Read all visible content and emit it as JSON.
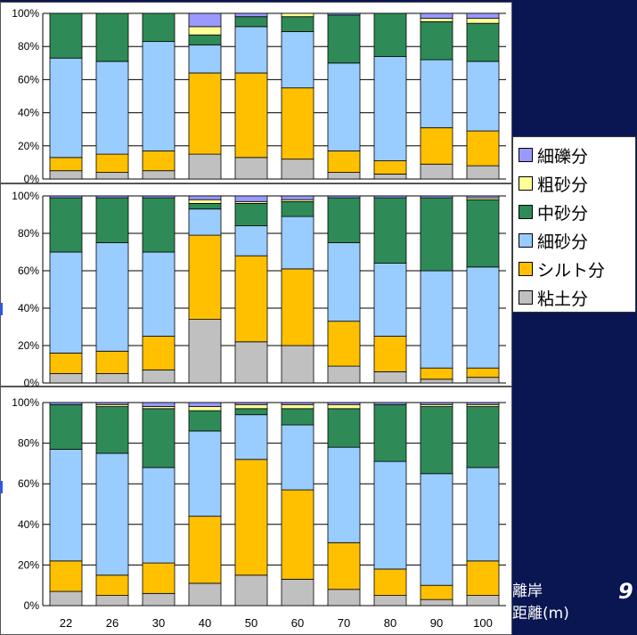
{
  "chart_data": {
    "type": "bar",
    "stacked": true,
    "categories": [
      "22",
      "26",
      "30",
      "40",
      "50",
      "60",
      "70",
      "80",
      "90",
      "100"
    ],
    "y_ticks": [
      "0%",
      "20%",
      "40%",
      "60%",
      "80%",
      "100%"
    ],
    "ylim": [
      0,
      100
    ],
    "legend_position": "right",
    "legend_order": [
      "細礫分",
      "粗砂分",
      "中砂分",
      "細砂分",
      "シルト分",
      "粘土分"
    ],
    "series_colors": {
      "粘土分": "#c0c0c0",
      "シルト分": "#ffc000",
      "細砂分": "#99ccff",
      "中砂分": "#2e8b57",
      "粗砂分": "#ffff99",
      "細礫分": "#9999ff"
    },
    "panels": [
      {
        "series": [
          {
            "name": "粘土分",
            "values": [
              5,
              4,
              5,
              15,
              13,
              12,
              4,
              3,
              9,
              8
            ]
          },
          {
            "name": "シルト分",
            "values": [
              8,
              11,
              12,
              49,
              51,
              43,
              13,
              8,
              22,
              21
            ]
          },
          {
            "name": "細砂分",
            "values": [
              60,
              56,
              66,
              17,
              28,
              34,
              53,
              63,
              41,
              42
            ]
          },
          {
            "name": "中砂分",
            "values": [
              27,
              29,
              17,
              6,
              6,
              9,
              29,
              26,
              23,
              23
            ]
          },
          {
            "name": "粗砂分",
            "values": [
              0,
              0,
              0,
              5,
              0,
              2,
              0,
              0,
              2,
              3
            ]
          },
          {
            "name": "細礫分",
            "values": [
              0,
              0,
              0,
              8,
              2,
              0,
              1,
              0,
              3,
              3
            ]
          }
        ]
      },
      {
        "series": [
          {
            "name": "粘土分",
            "values": [
              5,
              5,
              7,
              34,
              22,
              20,
              9,
              6,
              2,
              3
            ]
          },
          {
            "name": "シルト分",
            "values": [
              11,
              12,
              18,
              45,
              46,
              41,
              24,
              19,
              6,
              5
            ]
          },
          {
            "name": "細砂分",
            "values": [
              54,
              58,
              45,
              14,
              16,
              28,
              42,
              39,
              52,
              54
            ]
          },
          {
            "name": "中砂分",
            "values": [
              29,
              24,
              29,
              3,
              12,
              8,
              24,
              35,
              39,
              36
            ]
          },
          {
            "name": "粗砂分",
            "values": [
              0,
              0,
              0,
              2,
              1,
              1,
              0,
              0,
              0,
              1
            ]
          },
          {
            "name": "細礫分",
            "values": [
              1,
              1,
              1,
              2,
              3,
              2,
              1,
              1,
              1,
              1
            ]
          }
        ]
      },
      {
        "series": [
          {
            "name": "粘土分",
            "values": [
              7,
              5,
              6,
              11,
              15,
              13,
              8,
              5,
              3,
              5
            ]
          },
          {
            "name": "シルト分",
            "values": [
              15,
              10,
              15,
              33,
              57,
              44,
              23,
              13,
              7,
              17
            ]
          },
          {
            "name": "細砂分",
            "values": [
              55,
              60,
              47,
              42,
              22,
              32,
              47,
              53,
              55,
              46
            ]
          },
          {
            "name": "中砂分",
            "values": [
              22,
              23,
              29,
              10,
              3,
              8,
              19,
              28,
              33,
              30
            ]
          },
          {
            "name": "粗砂分",
            "values": [
              0,
              1,
              1,
              2,
              2,
              2,
              2,
              0,
              1,
              1
            ]
          },
          {
            "name": "細礫分",
            "values": [
              1,
              1,
              2,
              2,
              1,
              1,
              1,
              1,
              1,
              1
            ]
          }
        ]
      }
    ]
  },
  "legend": {
    "items": [
      {
        "label": "細礫分",
        "color": "#9999ff"
      },
      {
        "label": "粗砂分",
        "color": "#ffff99"
      },
      {
        "label": "中砂分",
        "color": "#2e8b57"
      },
      {
        "label": "細砂分",
        "color": "#99ccff"
      },
      {
        "label": "シルト分",
        "color": "#ffc000"
      },
      {
        "label": "粘土分",
        "color": "#c0c0c0"
      }
    ]
  },
  "x_axis_label_line1": "離岸",
  "x_axis_label_line2": "距離(m)",
  "page_number": "9"
}
